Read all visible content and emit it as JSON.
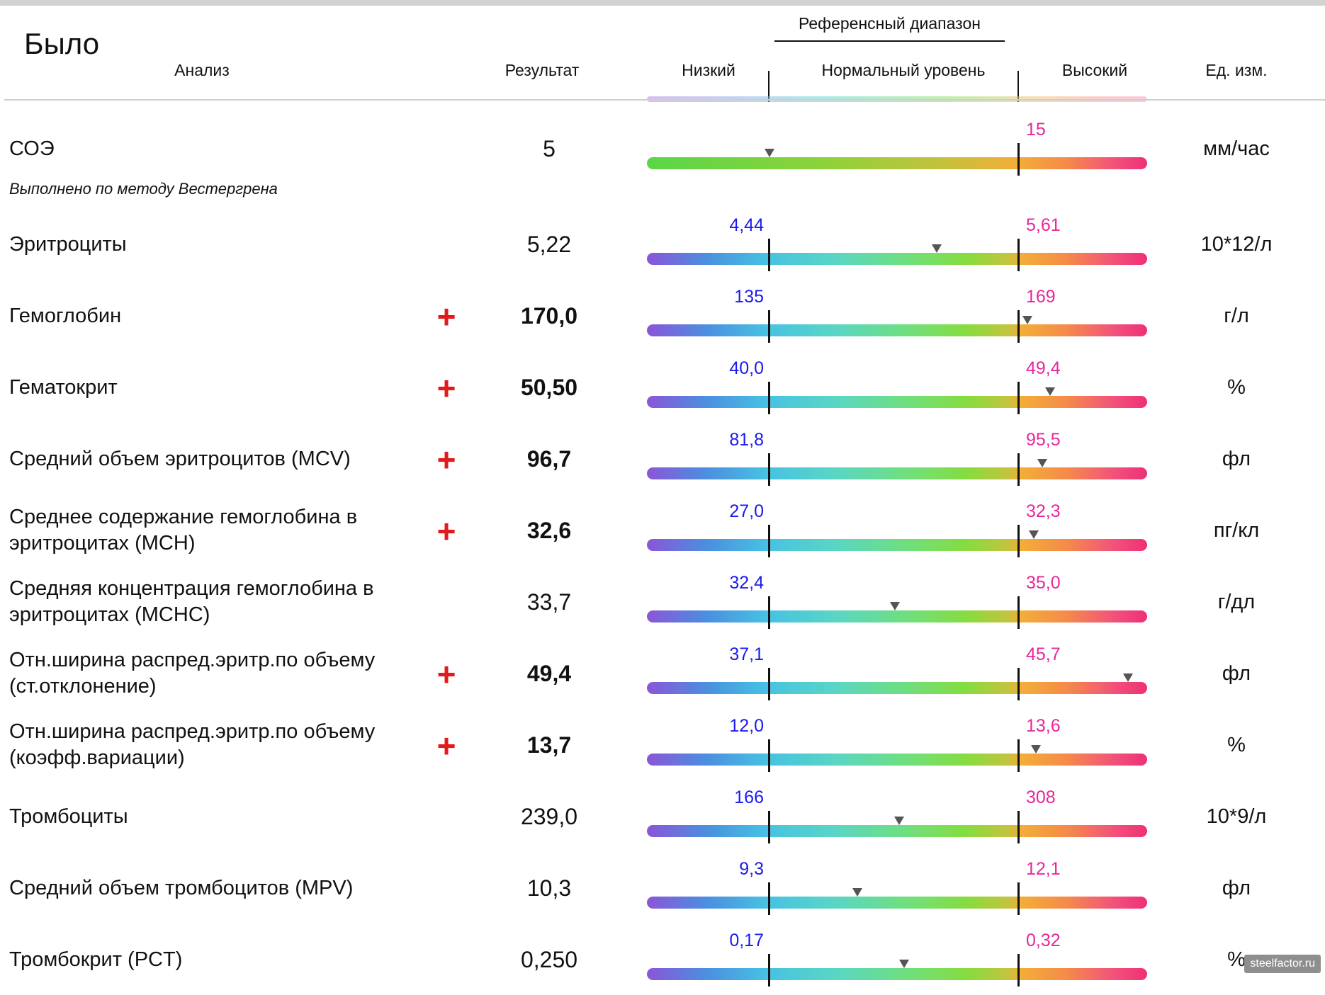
{
  "page": {
    "title": "Было",
    "watermark": "steelfactor.ru"
  },
  "header": {
    "reference_range": "Референсный диапазон",
    "analysis": "Анализ",
    "result": "Результат",
    "low": "Низкий",
    "normal": "Нормальный уровень",
    "high": "Высокий",
    "unit": "Ед. изм."
  },
  "note": "Выполнено по методу Вестергрена",
  "colors": {
    "low_label": "#1a1aee",
    "high_label": "#e8279a",
    "flag": "#e11b1b"
  },
  "rows": [
    {
      "name": "СОЭ",
      "value": "5",
      "unit": "мм/час",
      "flag": "",
      "bold": false,
      "low": "",
      "high": "15",
      "marker_fraction": 0.245,
      "bar": "high",
      "show_low_tick": false
    },
    {
      "name": "Эритроциты",
      "value": "5,22",
      "unit": "10*12/л",
      "flag": "",
      "bold": false,
      "low": "4,44",
      "high": "5,61",
      "marker_fraction": 0.58,
      "bar": "full",
      "show_low_tick": true
    },
    {
      "name": "Гемоглобин",
      "value": "170,0",
      "unit": "г/л",
      "flag": "+",
      "bold": true,
      "low": "135",
      "high": "169",
      "marker_fraction": 0.76,
      "bar": "full",
      "show_low_tick": true
    },
    {
      "name": "Гематокрит",
      "value": "50,50",
      "unit": "%",
      "flag": "+",
      "bold": true,
      "low": "40,0",
      "high": "49,4",
      "marker_fraction": 0.806,
      "bar": "full",
      "show_low_tick": true
    },
    {
      "name": "Средний объем эритроцитов (MCV)",
      "value": "96,7",
      "unit": "фл",
      "flag": "+",
      "bold": true,
      "low": "81,8",
      "high": "95,5",
      "marker_fraction": 0.79,
      "bar": "full",
      "show_low_tick": true
    },
    {
      "name": "Среднее содержание гемоглобина в эритроцитах (МСН)",
      "value": "32,6",
      "unit": "пг/кл",
      "flag": "+",
      "bold": true,
      "low": "27,0",
      "high": "32,3",
      "marker_fraction": 0.774,
      "bar": "full",
      "show_low_tick": true
    },
    {
      "name": "Средняя концентрация гемоглобина в эритроцитах (МСНС)",
      "value": "33,7",
      "unit": "г/дл",
      "flag": "",
      "bold": false,
      "low": "32,4",
      "high": "35,0",
      "marker_fraction": 0.496,
      "bar": "full",
      "show_low_tick": true
    },
    {
      "name": "Отн.ширина распред.эритр.по объему (ст.отклонение)",
      "value": "49,4",
      "unit": "фл",
      "flag": "+",
      "bold": true,
      "low": "37,1",
      "high": "45,7",
      "marker_fraction": 0.962,
      "bar": "full",
      "show_low_tick": true
    },
    {
      "name": "Отн.ширина распред.эритр.по объему (коэфф.вариации)",
      "value": "13,7",
      "unit": "%",
      "flag": "+",
      "bold": true,
      "low": "12,0",
      "high": "13,6",
      "marker_fraction": 0.777,
      "bar": "full",
      "show_low_tick": true
    },
    {
      "name": "Тромбоциты",
      "value": "239,0",
      "unit": "10*9/л",
      "flag": "",
      "bold": false,
      "low": "166",
      "high": "308",
      "marker_fraction": 0.504,
      "bar": "full",
      "show_low_tick": true
    },
    {
      "name": "Средний объем тромбоцитов (MPV)",
      "value": "10,3",
      "unit": "фл",
      "flag": "",
      "bold": false,
      "low": "9,3",
      "high": "12,1",
      "marker_fraction": 0.42,
      "bar": "full",
      "show_low_tick": true
    },
    {
      "name": "Тромбокрит (PCT)",
      "value": "0,250",
      "unit": "%",
      "flag": "",
      "bold": false,
      "low": "0,17",
      "high": "0,32",
      "marker_fraction": 0.514,
      "bar": "full",
      "show_low_tick": true
    }
  ]
}
